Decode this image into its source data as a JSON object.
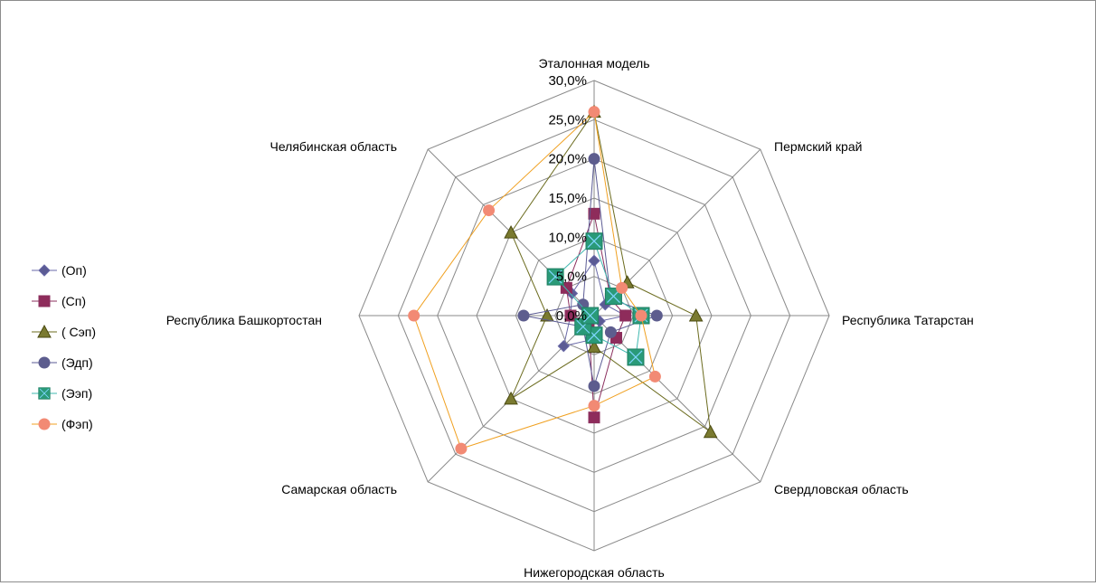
{
  "chart_data": {
    "type": "radar",
    "title": "",
    "categories": [
      "Эталонная модель",
      "Пермский край",
      "Республика Татарстан",
      "Свердловская область",
      "Нижегородская область",
      "Самарская область",
      "Республика Башкортостан",
      "Челябинская область"
    ],
    "axis_ticks": [
      "0,0%",
      "5,0%",
      "10,0%",
      "15,0%",
      "20,0%",
      "25,0%",
      "30,0%"
    ],
    "rlim": [
      0,
      30
    ],
    "grid": true,
    "legend_position": "left",
    "series": [
      {
        "name": "(Оп)",
        "marker": "diamond",
        "color": "#6a6aa8",
        "marker_fill": "#5b5b94",
        "values": [
          7.0,
          2.0,
          4.0,
          1.0,
          3.0,
          5.5,
          3.0,
          4.0
        ]
      },
      {
        "name": "(Сп)",
        "marker": "square",
        "color": "#8b2f5e",
        "marker_fill": "#8e2c5b",
        "values": [
          13.0,
          3.0,
          4.0,
          4.0,
          13.0,
          1.0,
          3.0,
          5.0
        ]
      },
      {
        "name": "( Сэп)",
        "marker": "triangle",
        "color": "#6b6b1e",
        "marker_fill": "#7a7a30",
        "values": [
          26.0,
          6.0,
          13.0,
          21.0,
          4.0,
          15.0,
          6.0,
          15.0
        ]
      },
      {
        "name": "(Эдп)",
        "marker": "circle",
        "color": "#5b5b94",
        "marker_fill": "#5d5d8e",
        "values": [
          20.0,
          3.0,
          8.0,
          3.0,
          9.0,
          2.0,
          9.0,
          2.0
        ]
      },
      {
        "name": "(Ээп)",
        "marker": "square-x",
        "color": "#40b8b0",
        "marker_fill": "#2a9a78",
        "values": [
          9.5,
          3.5,
          6.0,
          7.5,
          2.5,
          2.0,
          0.5,
          7.0
        ]
      },
      {
        "name": "(Фэп)",
        "marker": "circle",
        "color": "#f0a020",
        "marker_fill": "#f28a74",
        "values": [
          26.0,
          5.0,
          6.0,
          11.0,
          11.5,
          24.0,
          23.0,
          19.0
        ]
      }
    ]
  }
}
